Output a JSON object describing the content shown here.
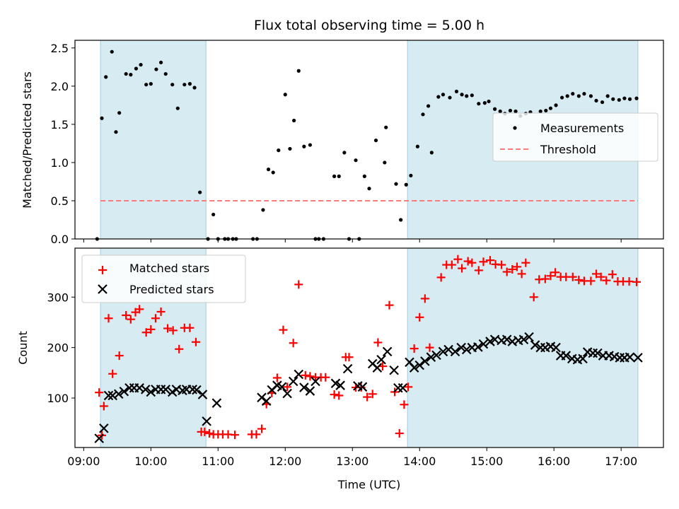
{
  "chart_data": [
    {
      "panel": "top",
      "type": "scatter",
      "title": "Flux total observing time = 5.00 h",
      "xlabel": "",
      "ylabel": "Matched/Predicted stars",
      "xlim_hours": [
        8.87,
        17.63
      ],
      "ylim": [
        0,
        2.6
      ],
      "yticks": [
        0.0,
        0.5,
        1.0,
        1.5,
        2.0,
        2.5
      ],
      "ytick_labels": [
        "0.0",
        "0.5",
        "1.0",
        "1.5",
        "2.0",
        "2.5"
      ],
      "shaded_intervals_hours": [
        [
          9.25,
          10.82
        ],
        [
          13.82,
          17.25
        ]
      ],
      "threshold": {
        "name": "Threshold",
        "value": 0.5,
        "x_range_hours": [
          9.25,
          17.25
        ],
        "color": "#ff7b7b"
      },
      "legend": {
        "placement": "center-right",
        "entries": [
          "Measurements",
          "Threshold"
        ]
      },
      "series": [
        {
          "name": "Measurements",
          "color": "#000000",
          "x_hours": [
            9.2,
            9.27,
            9.33,
            9.42,
            9.48,
            9.53,
            9.63,
            9.7,
            9.78,
            9.85,
            9.93,
            10.0,
            10.08,
            10.15,
            10.22,
            10.32,
            10.4,
            10.5,
            10.58,
            10.65,
            10.73,
            10.85,
            10.93,
            11.0,
            11.1,
            11.15,
            11.22,
            11.27,
            11.52,
            11.58,
            11.67,
            11.75,
            11.82,
            11.9,
            12.0,
            12.07,
            12.13,
            12.2,
            12.28,
            12.37,
            12.45,
            12.5,
            12.57,
            12.73,
            12.8,
            12.88,
            12.95,
            13.05,
            13.1,
            13.18,
            13.25,
            13.35,
            13.48,
            13.5,
            13.65,
            13.72,
            13.8,
            13.87,
            13.97,
            14.05,
            14.13,
            14.18,
            14.28,
            14.35,
            14.45,
            14.55,
            14.63,
            14.7,
            14.78,
            14.88,
            14.97,
            15.03,
            15.12,
            15.2,
            15.27,
            15.35,
            15.43,
            15.5,
            15.58,
            15.65,
            15.8,
            15.88,
            15.95,
            16.03,
            16.12,
            16.2,
            16.28,
            16.37,
            16.45,
            16.55,
            16.63,
            16.72,
            16.8,
            16.88,
            16.97,
            17.05,
            17.13,
            17.23
          ],
          "y": [
            0.0,
            1.58,
            2.12,
            2.45,
            1.4,
            1.65,
            2.16,
            2.15,
            2.23,
            2.28,
            2.02,
            2.03,
            2.22,
            2.31,
            2.16,
            2.02,
            1.71,
            2.02,
            2.03,
            1.98,
            0.61,
            0.0,
            0.32,
            0.0,
            0.0,
            0.0,
            0.0,
            0.0,
            0.0,
            0.0,
            0.38,
            0.91,
            0.87,
            1.16,
            1.89,
            1.18,
            1.55,
            2.2,
            1.21,
            1.23,
            0.0,
            0.0,
            0.0,
            0.82,
            0.82,
            1.13,
            0.0,
            1.03,
            0.0,
            0.82,
            0.66,
            1.29,
            1.0,
            1.46,
            0.72,
            0.25,
            0.71,
            0.83,
            1.21,
            1.63,
            1.74,
            1.13,
            1.86,
            1.89,
            1.85,
            1.93,
            1.89,
            1.87,
            1.88,
            1.77,
            1.78,
            1.8,
            1.7,
            1.67,
            1.64,
            1.68,
            1.67,
            1.61,
            1.64,
            1.66,
            1.67,
            1.68,
            1.71,
            1.75,
            1.85,
            1.87,
            1.9,
            1.87,
            1.9,
            1.87,
            1.81,
            1.79,
            1.87,
            1.83,
            1.82,
            1.84,
            1.83,
            1.84
          ]
        }
      ]
    },
    {
      "panel": "bottom",
      "type": "scatter",
      "xlabel": "Time (UTC)",
      "ylabel": "Count",
      "xlim_hours": [
        8.87,
        17.63
      ],
      "ylim": [
        2,
        397
      ],
      "xticks_hours": [
        9,
        10,
        11,
        12,
        13,
        14,
        15,
        16,
        17
      ],
      "xtick_labels": [
        "09:00",
        "10:00",
        "11:00",
        "12:00",
        "13:00",
        "14:00",
        "15:00",
        "16:00",
        "17:00"
      ],
      "yticks": [
        100,
        200,
        300
      ],
      "ytick_labels": [
        "100",
        "200",
        "300"
      ],
      "shaded_intervals_hours": [
        [
          9.25,
          10.82
        ],
        [
          13.82,
          17.25
        ]
      ],
      "legend": {
        "placement": "top-left",
        "entries": [
          "Matched stars",
          "Predicted stars"
        ]
      },
      "series": [
        {
          "name": "Matched stars",
          "marker": "+",
          "color": "#ff0000",
          "x_hours": [
            9.23,
            9.27,
            9.3,
            9.37,
            9.43,
            9.53,
            9.63,
            9.7,
            9.77,
            9.83,
            9.93,
            10.0,
            10.07,
            10.15,
            10.25,
            10.33,
            10.42,
            10.5,
            10.58,
            10.67,
            10.75,
            10.8,
            10.87,
            10.93,
            11.0,
            11.07,
            11.15,
            11.25,
            11.5,
            11.57,
            11.65,
            11.72,
            11.8,
            11.88,
            11.97,
            12.03,
            12.12,
            12.2,
            12.3,
            12.37,
            12.45,
            12.53,
            12.6,
            12.73,
            12.8,
            12.9,
            12.95,
            13.05,
            13.13,
            13.22,
            13.3,
            13.38,
            13.45,
            13.55,
            13.63,
            13.7,
            13.77,
            13.83,
            13.92,
            14.0,
            14.08,
            14.15,
            14.32,
            14.4,
            14.48,
            14.57,
            14.63,
            14.72,
            14.78,
            14.88,
            14.95,
            15.05,
            15.13,
            15.22,
            15.3,
            15.38,
            15.45,
            15.52,
            15.58,
            15.7,
            15.78,
            15.87,
            15.95,
            16.02,
            16.1,
            16.18,
            16.28,
            16.37,
            16.45,
            16.55,
            16.63,
            16.7,
            16.78,
            16.87,
            16.95,
            17.03,
            17.12,
            17.23
          ],
          "y": [
            111,
            26,
            84,
            258,
            148,
            184,
            264,
            256,
            270,
            276,
            230,
            236,
            258,
            271,
            238,
            234,
            197,
            239,
            239,
            211,
            33,
            33,
            30,
            28,
            28,
            28,
            28,
            27,
            28,
            28,
            39,
            88,
            110,
            140,
            235,
            122,
            209,
            325,
            145,
            143,
            141,
            141,
            141,
            107,
            105,
            181,
            181,
            121,
            121,
            102,
            108,
            210,
            163,
            284,
            112,
            30,
            87,
            122,
            198,
            260,
            297,
            200,
            339,
            364,
            364,
            375,
            357,
            371,
            368,
            353,
            370,
            373,
            365,
            364,
            350,
            355,
            360,
            346,
            368,
            300,
            335,
            336,
            342,
            349,
            340,
            340,
            340,
            334,
            332,
            332,
            346,
            340,
            333,
            345,
            331,
            331,
            331,
            330
          ]
        },
        {
          "name": "Predicted stars",
          "marker": "x",
          "color": "#000000",
          "x_hours": [
            9.23,
            9.3,
            9.37,
            9.43,
            9.52,
            9.6,
            9.68,
            9.75,
            9.83,
            9.92,
            10.0,
            10.07,
            10.15,
            10.22,
            10.32,
            10.38,
            10.47,
            10.53,
            10.62,
            10.68,
            10.77,
            10.83,
            10.98,
            11.65,
            11.72,
            11.8,
            11.88,
            11.95,
            12.03,
            12.12,
            12.2,
            12.28,
            12.37,
            12.45,
            12.75,
            12.82,
            12.93,
            13.08,
            13.15,
            13.3,
            13.37,
            13.43,
            13.52,
            13.62,
            13.68,
            13.75,
            13.85,
            13.92,
            14.0,
            14.08,
            14.17,
            14.25,
            14.35,
            14.43,
            14.53,
            14.62,
            14.7,
            14.78,
            14.87,
            14.95,
            15.05,
            15.12,
            15.22,
            15.3,
            15.38,
            15.47,
            15.55,
            15.63,
            15.72,
            15.8,
            15.87,
            15.95,
            16.03,
            16.1,
            16.18,
            16.27,
            16.35,
            16.43,
            16.5,
            16.58,
            16.65,
            16.73,
            16.82,
            16.9,
            16.98,
            17.05,
            17.13,
            17.25
          ],
          "y": [
            20,
            40,
            105,
            105,
            108,
            113,
            120,
            120,
            120,
            117,
            112,
            117,
            117,
            117,
            112,
            117,
            115,
            117,
            117,
            116,
            107,
            54,
            90,
            101,
            94,
            116,
            125,
            122,
            109,
            133,
            147,
            121,
            114,
            133,
            129,
            125,
            158,
            124,
            122,
            168,
            160,
            176,
            192,
            155,
            120,
            120,
            171,
            160,
            165,
            173,
            181,
            185,
            192,
            196,
            192,
            200,
            196,
            200,
            201,
            207,
            212,
            216,
            214,
            216,
            212,
            214,
            216,
            221,
            205,
            200,
            200,
            202,
            200,
            184,
            184,
            178,
            176,
            178,
            191,
            189,
            189,
            184,
            184,
            182,
            180,
            180,
            181,
            180
          ]
        }
      ]
    }
  ]
}
